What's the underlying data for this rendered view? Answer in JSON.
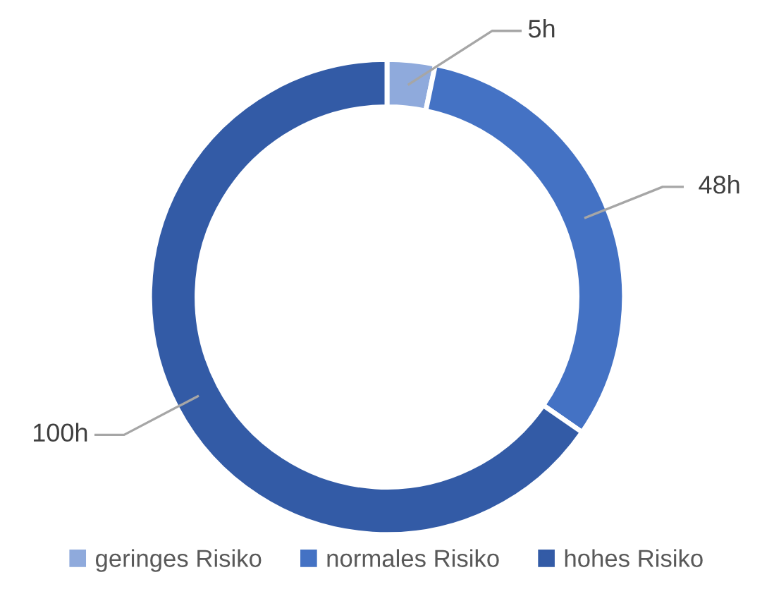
{
  "chart_data": {
    "type": "donut",
    "categories": [
      "geringes Risiko",
      "normales Risiko",
      "hohes Risiko"
    ],
    "values": [
      5,
      48,
      100
    ],
    "colors": [
      "#8faadc",
      "#4472c4",
      "#335ba6"
    ],
    "value_labels": [
      "5h",
      "48h",
      "100h"
    ],
    "legend": "bottom"
  }
}
